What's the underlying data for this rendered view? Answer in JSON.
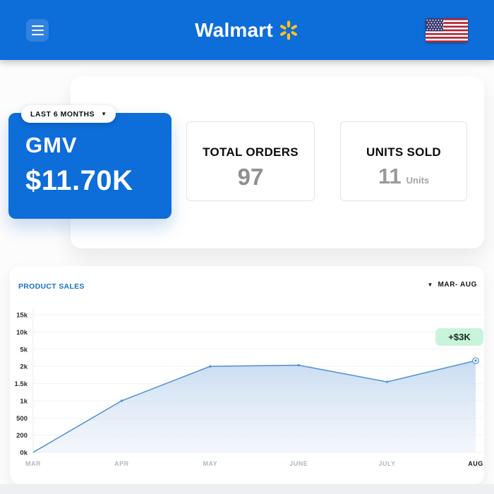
{
  "header": {
    "brand_name": "Walmart",
    "colors": {
      "background": "#0d6dd9",
      "spark_yellow": "#ffc220"
    }
  },
  "period_selector": {
    "label": "LAST 6 MONTHS"
  },
  "stats": {
    "gmv": {
      "label": "GMV",
      "value": "$11.70K"
    },
    "total_orders": {
      "label": "TOTAL ORDERS",
      "value": "97"
    },
    "units_sold": {
      "label": "UNITS SOLD",
      "value": "11",
      "unit_label": "Units"
    }
  },
  "chart_section": {
    "title": "PRODUCT SALES",
    "range_label": "MAR- AUG",
    "gain_badge": "+$3K"
  },
  "chart_data": {
    "type": "area",
    "title": "PRODUCT SALES",
    "x_labels": [
      "MAR",
      "APR",
      "MAY",
      "JUNE",
      "JULY",
      "AUG"
    ],
    "values": [
      0,
      1000,
      2000,
      2200,
      1550,
      3000
    ],
    "y_tick_labels": [
      "0k",
      "200",
      "500",
      "1k",
      "1.5k",
      "2k",
      "5k",
      "10k",
      "15k"
    ],
    "y_tick_values": [
      0,
      200,
      500,
      1000,
      1500,
      2000,
      5000,
      10000,
      15000
    ],
    "y_axis_note": "tick labels equally spaced (non-linear scale)",
    "annotation": {
      "text": "+$3K",
      "at": "AUG"
    },
    "grid": true,
    "legend": false,
    "highlight_last_x_label": true,
    "colors": {
      "line": "#4e8fd2",
      "area_top": "#bcd4ee",
      "area_bottom": "#e9f0f9",
      "badge_bg": "#c9f4dc",
      "badge_text": "#15291f",
      "title": "#1a72c6",
      "x_label": "#b4b9c0",
      "x_label_last": "#16181b",
      "y_label": "#2d2d2d",
      "grid_line": "#f1f3f5"
    }
  }
}
